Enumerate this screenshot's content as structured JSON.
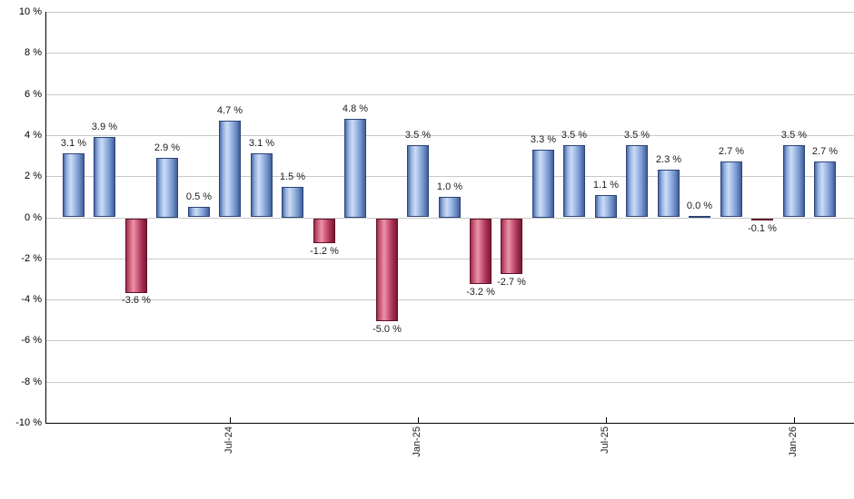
{
  "chart_data": {
    "type": "bar",
    "title": "",
    "xlabel": "",
    "ylabel": "",
    "ylim": [
      -10,
      10
    ],
    "ytick_step": 2,
    "grid": true,
    "legend": "none",
    "y_axis_ticks": [
      {
        "value": 10,
        "label": "10 %"
      },
      {
        "value": 8,
        "label": "8 %"
      },
      {
        "value": 6,
        "label": "6 %"
      },
      {
        "value": 4,
        "label": "4 %"
      },
      {
        "value": 2,
        "label": "2 %"
      },
      {
        "value": 0,
        "label": "0 %"
      },
      {
        "value": -2,
        "label": "-2 %"
      },
      {
        "value": -4,
        "label": "-4 %"
      },
      {
        "value": -6,
        "label": "-6 %"
      },
      {
        "value": -8,
        "label": "-8 %"
      },
      {
        "value": -10,
        "label": "-10 %"
      }
    ],
    "x_axis_ticks": [
      {
        "bar_index": 5,
        "label": "Jul-24"
      },
      {
        "bar_index": 11,
        "label": "Jan-25"
      },
      {
        "bar_index": 17,
        "label": "Jul-25"
      },
      {
        "bar_index": 23,
        "label": "Jan-26"
      }
    ],
    "values": [
      3.1,
      3.9,
      -3.6,
      2.9,
      0.5,
      4.7,
      3.1,
      1.5,
      -1.2,
      4.8,
      -5.0,
      3.5,
      1.0,
      -3.2,
      -2.7,
      3.3,
      3.5,
      1.1,
      3.5,
      2.3,
      0.0,
      2.7,
      -0.1,
      3.5,
      2.7
    ],
    "bar_labels": [
      "3.1 %",
      "3.9 %",
      "-3.6 %",
      "2.9 %",
      "0.5 %",
      "4.7 %",
      "3.1 %",
      "1.5 %",
      "-1.2 %",
      "4.8 %",
      "-5.0 %",
      "3.5 %",
      "1.0 %",
      "-3.2 %",
      "-2.7 %",
      "3.3 %",
      "3.5 %",
      "1.1 %",
      "3.5 %",
      "2.3 %",
      "0.0 %",
      "2.7 %",
      "-0.1 %",
      "3.5 %",
      "2.7 %"
    ],
    "colors": {
      "positive_bar_main": "#8faede",
      "positive_bar_highlight": "#cddcf4",
      "positive_bar_edge": "#2c4478",
      "negative_bar_main": "#c2486a",
      "negative_bar_highlight": "#eb93a8",
      "negative_bar_edge": "#5e1027",
      "gridline": "#c9c9c9",
      "axis": "#000000",
      "label_text": "#1c1c1c",
      "background": "#ffffff"
    }
  }
}
